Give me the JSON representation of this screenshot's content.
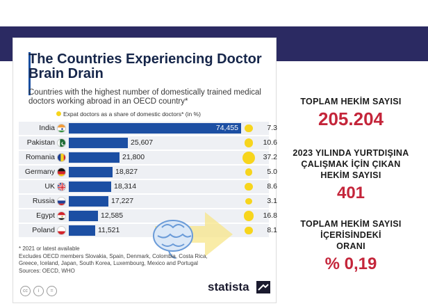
{
  "chart_data": {
    "type": "bar",
    "title": "The Countries Experiencing Doctor Brain Drain",
    "subtitle": "Countries with the highest number of domestically trained medical doctors working abroad in an OECD country*",
    "legend_label": "Expat doctors as a share of domestic doctors* (in %)",
    "categories": [
      "India",
      "Pakistan",
      "Romania",
      "Germany",
      "UK",
      "Russia",
      "Egypt",
      "Poland"
    ],
    "values": [
      74455,
      25607,
      21800,
      18827,
      18314,
      17227,
      12585,
      11521
    ],
    "value_labels": [
      "74,455",
      "25,607",
      "21,800",
      "18,827",
      "18,314",
      "17,227",
      "12,585",
      "11,521"
    ],
    "share_pct": [
      7.3,
      10.6,
      37.2,
      5.0,
      8.6,
      3.1,
      16.8,
      8.1
    ],
    "share_labels": [
      "7.3",
      "10.6",
      "37.2",
      "5.0",
      "8.6",
      "3.1",
      "16.8",
      "8.1"
    ],
    "bar_color": "#1c4fa3",
    "dot_color": "#f7d51d",
    "footnotes": [
      "* 2021 or latest available",
      "Excludes OECD members Slovakia, Spain, Denmark, Colombia, Costa Rica,",
      "Greece, Iceland, Japan, South Korea, Luxembourg, Mexico and Portugal",
      "Sources: OECD, WHO"
    ],
    "brand": "statista"
  },
  "side_panel": {
    "total_label": "TOPLAM HEKİM SAYISI",
    "total_value": "205.204",
    "left_label_line1": "2023 YILINDA YURTDIŞINA",
    "left_label_line2": "ÇALIŞMAK İÇİN ÇIKAN",
    "left_label_line3": "HEKİM SAYISI",
    "left_value": "401",
    "ratio_label_line1": "TOPLAM HEKİM SAYISI",
    "ratio_label_line2": "İÇERİSİNDEKİ",
    "ratio_label_line3": "ORANI",
    "ratio_value": "% 0,19",
    "accent_color": "#c4253a"
  }
}
